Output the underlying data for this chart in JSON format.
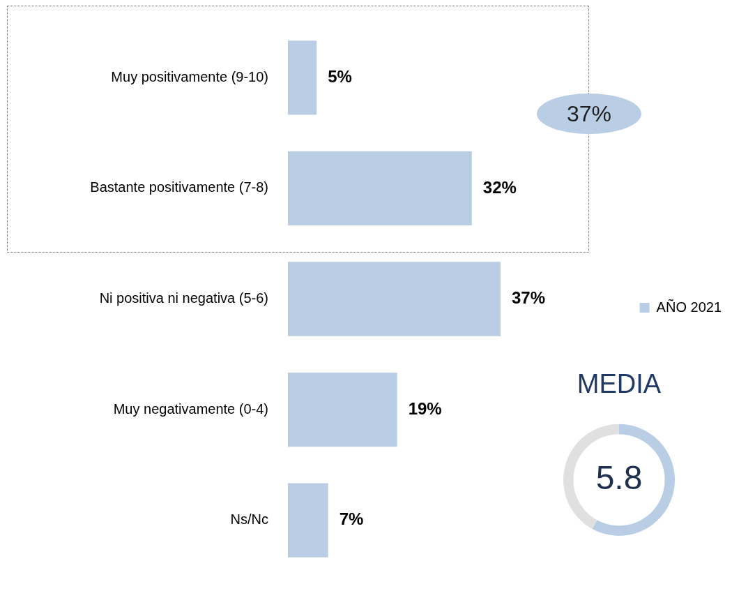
{
  "chart_data": [
    {
      "type": "bar",
      "orientation": "horizontal",
      "categories": [
        "Muy positivamente (9-10)",
        "Bastante positivamente (7-8)",
        "Ni positiva ni negativa (5-6)",
        "Muy negativamente (0-4)",
        "Ns/Nc"
      ],
      "series": [
        {
          "name": "AÑO 2021",
          "color": "#b9cde5",
          "values": [
            5,
            32,
            37,
            19,
            7
          ],
          "value_labels": [
            "5%",
            "32%",
            "37%",
            "19%",
            "7%"
          ]
        }
      ],
      "legend": "right",
      "annotations": [
        "37%"
      ]
    },
    {
      "type": "donut",
      "title": "MEDIA",
      "categories": [
        null,
        null
      ],
      "values": [
        58,
        42
      ],
      "colors": [
        "#b9cde5",
        "#e0e0e0"
      ],
      "annotations": [
        "5.8"
      ],
      "legend": false
    }
  ]
}
